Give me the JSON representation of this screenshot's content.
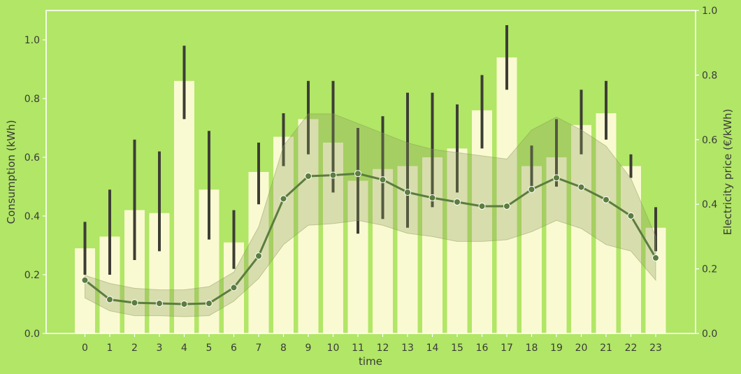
{
  "chart_data": {
    "type": "bar+line",
    "xlabel": "time",
    "ylabel": "Consumption (kWh)",
    "y2label": "Electricity price (€/kWh)",
    "ylim": [
      0,
      1.1
    ],
    "y2lim": [
      0,
      1.0
    ],
    "yticks": [
      "0.0",
      "0.2",
      "0.4",
      "0.6",
      "0.8",
      "1.0"
    ],
    "y2ticks": [
      "0.0",
      "0.2",
      "0.4",
      "0.6",
      "0.8",
      "1.0"
    ],
    "categories": [
      "0",
      "1",
      "2",
      "3",
      "4",
      "5",
      "6",
      "7",
      "8",
      "9",
      "10",
      "11",
      "12",
      "13",
      "14",
      "15",
      "16",
      "17",
      "18",
      "19",
      "20",
      "21",
      "22",
      "23"
    ],
    "bars": {
      "values": [
        0.29,
        0.33,
        0.42,
        0.41,
        0.86,
        0.49,
        0.31,
        0.55,
        0.67,
        0.73,
        0.65,
        0.52,
        0.56,
        0.57,
        0.6,
        0.63,
        0.76,
        0.94,
        0.57,
        0.6,
        0.71,
        0.75,
        0.57,
        0.36
      ],
      "err_low": [
        0.2,
        0.2,
        0.25,
        0.28,
        0.73,
        0.32,
        0.22,
        0.44,
        0.57,
        0.61,
        0.48,
        0.34,
        0.39,
        0.36,
        0.43,
        0.48,
        0.63,
        0.83,
        0.49,
        0.5,
        0.61,
        0.66,
        0.53,
        0.28
      ],
      "err_high": [
        0.38,
        0.49,
        0.66,
        0.62,
        0.98,
        0.69,
        0.42,
        0.65,
        0.75,
        0.86,
        0.86,
        0.7,
        0.74,
        0.82,
        0.82,
        0.78,
        0.88,
        1.05,
        0.64,
        0.73,
        0.83,
        0.86,
        0.61,
        0.43
      ]
    },
    "line": {
      "values": [
        0.165,
        0.105,
        0.095,
        0.093,
        0.091,
        0.093,
        0.142,
        0.24,
        0.417,
        0.487,
        0.49,
        0.495,
        0.476,
        0.437,
        0.42,
        0.407,
        0.394,
        0.394,
        0.446,
        0.482,
        0.453,
        0.414,
        0.364,
        0.234
      ],
      "band_low": [
        0.11,
        0.07,
        0.055,
        0.055,
        0.052,
        0.055,
        0.1,
        0.17,
        0.275,
        0.335,
        0.34,
        0.35,
        0.335,
        0.31,
        0.3,
        0.285,
        0.285,
        0.29,
        0.315,
        0.35,
        0.325,
        0.275,
        0.255,
        0.165
      ],
      "band_high": [
        0.18,
        0.155,
        0.14,
        0.135,
        0.135,
        0.145,
        0.19,
        0.33,
        0.58,
        0.68,
        0.68,
        0.65,
        0.62,
        0.59,
        0.57,
        0.56,
        0.55,
        0.54,
        0.63,
        0.67,
        0.63,
        0.58,
        0.48,
        0.3
      ]
    },
    "colors": {
      "background": "#b1e666",
      "bar_fill": "#fafad2",
      "error_bar": "#3d3d35",
      "line": "#5b7d3f",
      "band": "#8a9a5b",
      "axis_spine": "#ffffff"
    }
  }
}
